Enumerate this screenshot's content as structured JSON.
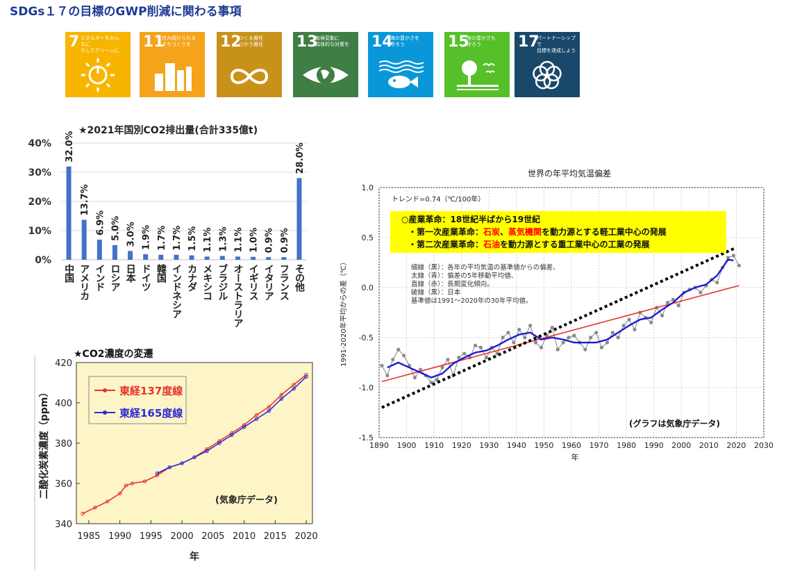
{
  "header": {
    "title": "SDGs１７の目標のGWP削減に関わる事項"
  },
  "sdg_goals": [
    {
      "number": "7",
      "text": "エネルギーをみんなに\nそしてクリーンに",
      "color": "#f7b500",
      "icon": "sun-power-icon"
    },
    {
      "number": "11",
      "text": "住み続けられる\nまちづくりを",
      "color": "#f5a31a",
      "icon": "city-buildings-icon"
    },
    {
      "number": "12",
      "text": "つくる責任\nつかう責任",
      "color": "#c8921a",
      "icon": "infinity-icon"
    },
    {
      "number": "13",
      "text": "気候変動に\n具体的な対策を",
      "color": "#3f7e44",
      "icon": "earth-eye-icon"
    },
    {
      "number": "14",
      "text": "海の豊かさを\n守ろう",
      "color": "#0a97d9",
      "icon": "fish-waves-icon"
    },
    {
      "number": "15",
      "text": "陸の豊かさも\n守ろう",
      "color": "#56c02b",
      "icon": "tree-birds-icon"
    },
    {
      "number": "17",
      "text": "パートナーシップで\n目標を達成しよう",
      "color": "#19486a",
      "icon": "flower-rings-icon"
    }
  ],
  "chart_data": [
    {
      "type": "bar",
      "title": "★2021年国別CO2排出量(合計335億t)",
      "categories": [
        "中国",
        "アメリカ",
        "インド",
        "ロシア",
        "日本",
        "ドイツ",
        "韓国",
        "インドネシア",
        "カナダ",
        "メキシコ",
        "ブラジル",
        "オーストラリア",
        "イギリス",
        "イタリア",
        "フランス",
        "その他"
      ],
      "values": [
        32.0,
        13.7,
        6.9,
        5.0,
        3.0,
        1.9,
        1.7,
        1.7,
        1.5,
        1.1,
        1.3,
        1.1,
        1.0,
        0.9,
        0.9,
        28.0
      ],
      "value_labels": [
        "32.0%",
        "13.7%",
        "6.9%",
        "5.0%",
        "3.0%",
        "1.9%",
        "1.7%",
        "1.7%",
        "1.5%",
        "1.1%",
        "1.3%",
        "1.1%",
        "1.0%",
        "0.9%",
        "0.9%",
        "28.0%"
      ],
      "ylim": [
        0,
        40
      ],
      "yticks": [
        0,
        10,
        20,
        30,
        40
      ],
      "ytick_labels": [
        "0%",
        "10%",
        "20%",
        "30%",
        "40%"
      ],
      "bar_color": "#4472c4",
      "grid": true
    },
    {
      "type": "line",
      "title": "★CO2濃度の変遷",
      "xlabel": "年",
      "ylabel": "二酸化炭素濃度（ppm）",
      "xlim": [
        1983,
        2021
      ],
      "ylim": [
        340,
        420
      ],
      "xticks": [
        1985,
        1990,
        1995,
        2000,
        2005,
        2010,
        2015,
        2020
      ],
      "yticks": [
        340,
        360,
        380,
        400,
        420
      ],
      "legend_position": "top-left",
      "annotation": "(気象庁データ)",
      "background_color": "#fdf5c8",
      "series": [
        {
          "name": "東経137度線",
          "color": "#e8342c",
          "x": [
            1984,
            1986,
            1988,
            1990,
            1991,
            1992,
            1994,
            1996,
            1998,
            2000,
            2002,
            2004,
            2006,
            2008,
            2010,
            2012,
            2014,
            2016,
            2018,
            2020
          ],
          "y": [
            345,
            348,
            351,
            355,
            359,
            360,
            361,
            364,
            368,
            370,
            373,
            377,
            381,
            385,
            389,
            394,
            398,
            404,
            409,
            414
          ]
        },
        {
          "name": "東経165度線",
          "color": "#2b2bd6",
          "x": [
            1996,
            1998,
            2000,
            2002,
            2004,
            2006,
            2008,
            2010,
            2012,
            2014,
            2016,
            2018,
            2020
          ],
          "y": [
            365,
            368,
            370,
            373,
            376,
            380,
            384,
            388,
            392,
            396,
            402,
            407,
            413
          ]
        }
      ]
    },
    {
      "type": "line",
      "title": "世界の年平均気温偏差",
      "xlabel": "年",
      "ylabel": "1991-2020年平均からの差（℃）",
      "xlim": [
        1890,
        2030
      ],
      "ylim": [
        -1.5,
        1.0
      ],
      "xticks": [
        1890,
        1900,
        1910,
        1920,
        1930,
        1940,
        1950,
        1960,
        1970,
        1980,
        1990,
        2000,
        2010,
        2020,
        2030
      ],
      "yticks": [
        -1.5,
        -1.0,
        -0.5,
        0.0,
        0.5,
        1.0
      ],
      "ytick_labels": [
        "-1.5",
        "-1.0",
        "-0.5",
        "0.0",
        "0.5",
        "1.0"
      ],
      "trend_label": "トレンド=0.74（℃/100年）",
      "annotation": "(グラフは気象庁データ)",
      "grid": true,
      "series": [
        {
          "name": "細線（黒）",
          "color": "#808080",
          "marker": "circle",
          "x": [
            1891,
            1893,
            1895,
            1897,
            1899,
            1901,
            1903,
            1905,
            1907,
            1909,
            1911,
            1913,
            1915,
            1917,
            1919,
            1921,
            1923,
            1925,
            1927,
            1929,
            1931,
            1933,
            1935,
            1937,
            1939,
            1941,
            1943,
            1945,
            1947,
            1949,
            1951,
            1953,
            1955,
            1957,
            1959,
            1961,
            1963,
            1965,
            1967,
            1969,
            1971,
            1973,
            1975,
            1977,
            1979,
            1981,
            1983,
            1985,
            1987,
            1989,
            1991,
            1993,
            1995,
            1997,
            1999,
            2001,
            2003,
            2005,
            2007,
            2009,
            2011,
            2013,
            2015,
            2017,
            2019,
            2021
          ],
          "y": [
            -0.78,
            -0.88,
            -0.72,
            -0.62,
            -0.68,
            -0.78,
            -0.9,
            -0.82,
            -0.88,
            -0.95,
            -0.92,
            -0.8,
            -0.72,
            -0.88,
            -0.7,
            -0.66,
            -0.7,
            -0.58,
            -0.6,
            -0.7,
            -0.6,
            -0.66,
            -0.5,
            -0.45,
            -0.55,
            -0.42,
            -0.5,
            -0.38,
            -0.55,
            -0.6,
            -0.48,
            -0.4,
            -0.62,
            -0.55,
            -0.5,
            -0.48,
            -0.55,
            -0.62,
            -0.5,
            -0.45,
            -0.6,
            -0.55,
            -0.45,
            -0.5,
            -0.38,
            -0.32,
            -0.42,
            -0.25,
            -0.3,
            -0.35,
            -0.2,
            -0.28,
            -0.15,
            -0.12,
            -0.18,
            -0.05,
            -0.02,
            0.0,
            -0.05,
            0.02,
            0.08,
            0.05,
            0.2,
            0.3,
            0.32,
            0.22
          ]
        },
        {
          "name": "太線（青）",
          "color": "#1c1cd0",
          "x": [
            1893,
            1897,
            1901,
            1905,
            1909,
            1913,
            1917,
            1921,
            1925,
            1929,
            1933,
            1937,
            1941,
            1945,
            1949,
            1953,
            1957,
            1961,
            1965,
            1969,
            1973,
            1977,
            1981,
            1985,
            1989,
            1993,
            1997,
            2001,
            2005,
            2009,
            2013,
            2017,
            2019
          ],
          "y": [
            -0.8,
            -0.75,
            -0.8,
            -0.85,
            -0.9,
            -0.86,
            -0.76,
            -0.7,
            -0.65,
            -0.63,
            -0.58,
            -0.52,
            -0.47,
            -0.45,
            -0.52,
            -0.5,
            -0.52,
            -0.55,
            -0.55,
            -0.55,
            -0.52,
            -0.45,
            -0.38,
            -0.32,
            -0.3,
            -0.22,
            -0.15,
            -0.05,
            0.0,
            0.03,
            0.12,
            0.28,
            0.27
          ]
        },
        {
          "name": "直線（赤）",
          "color": "#e8342c",
          "x": [
            1891,
            2021
          ],
          "y": [
            -0.94,
            0.02
          ]
        },
        {
          "name": "破線（黒）",
          "color": "#000000",
          "dash": true,
          "x": [
            1891,
            2020
          ],
          "y": [
            -1.2,
            0.4
          ]
        }
      ],
      "info_box": {
        "line1": "○産業革命：18世紀半ばから19世紀",
        "line2": {
          "prefix": "・第一次産業革命：",
          "hi1": "石炭",
          "sep": "、",
          "hi2": "蒸気機関",
          "suffix": "を動力源とする軽工業中心の発展"
        },
        "line3": {
          "prefix": "・第二次産業革命：",
          "hi1": "石油",
          "suffix": "を動力源とする重工業中心の工業の発展"
        },
        "background_color": "#ffff00",
        "highlight_color": "#ff0000"
      },
      "legend_notes": [
        "細線（黒）：各年の平均気温の基準値からの偏差、",
        "太線（青）：偏差の5年移動平均値、",
        "直線（赤）：長期変化傾向。",
        "破線（黒）：日本",
        "基準値は1991～2020年の30年平均値。"
      ]
    }
  ]
}
